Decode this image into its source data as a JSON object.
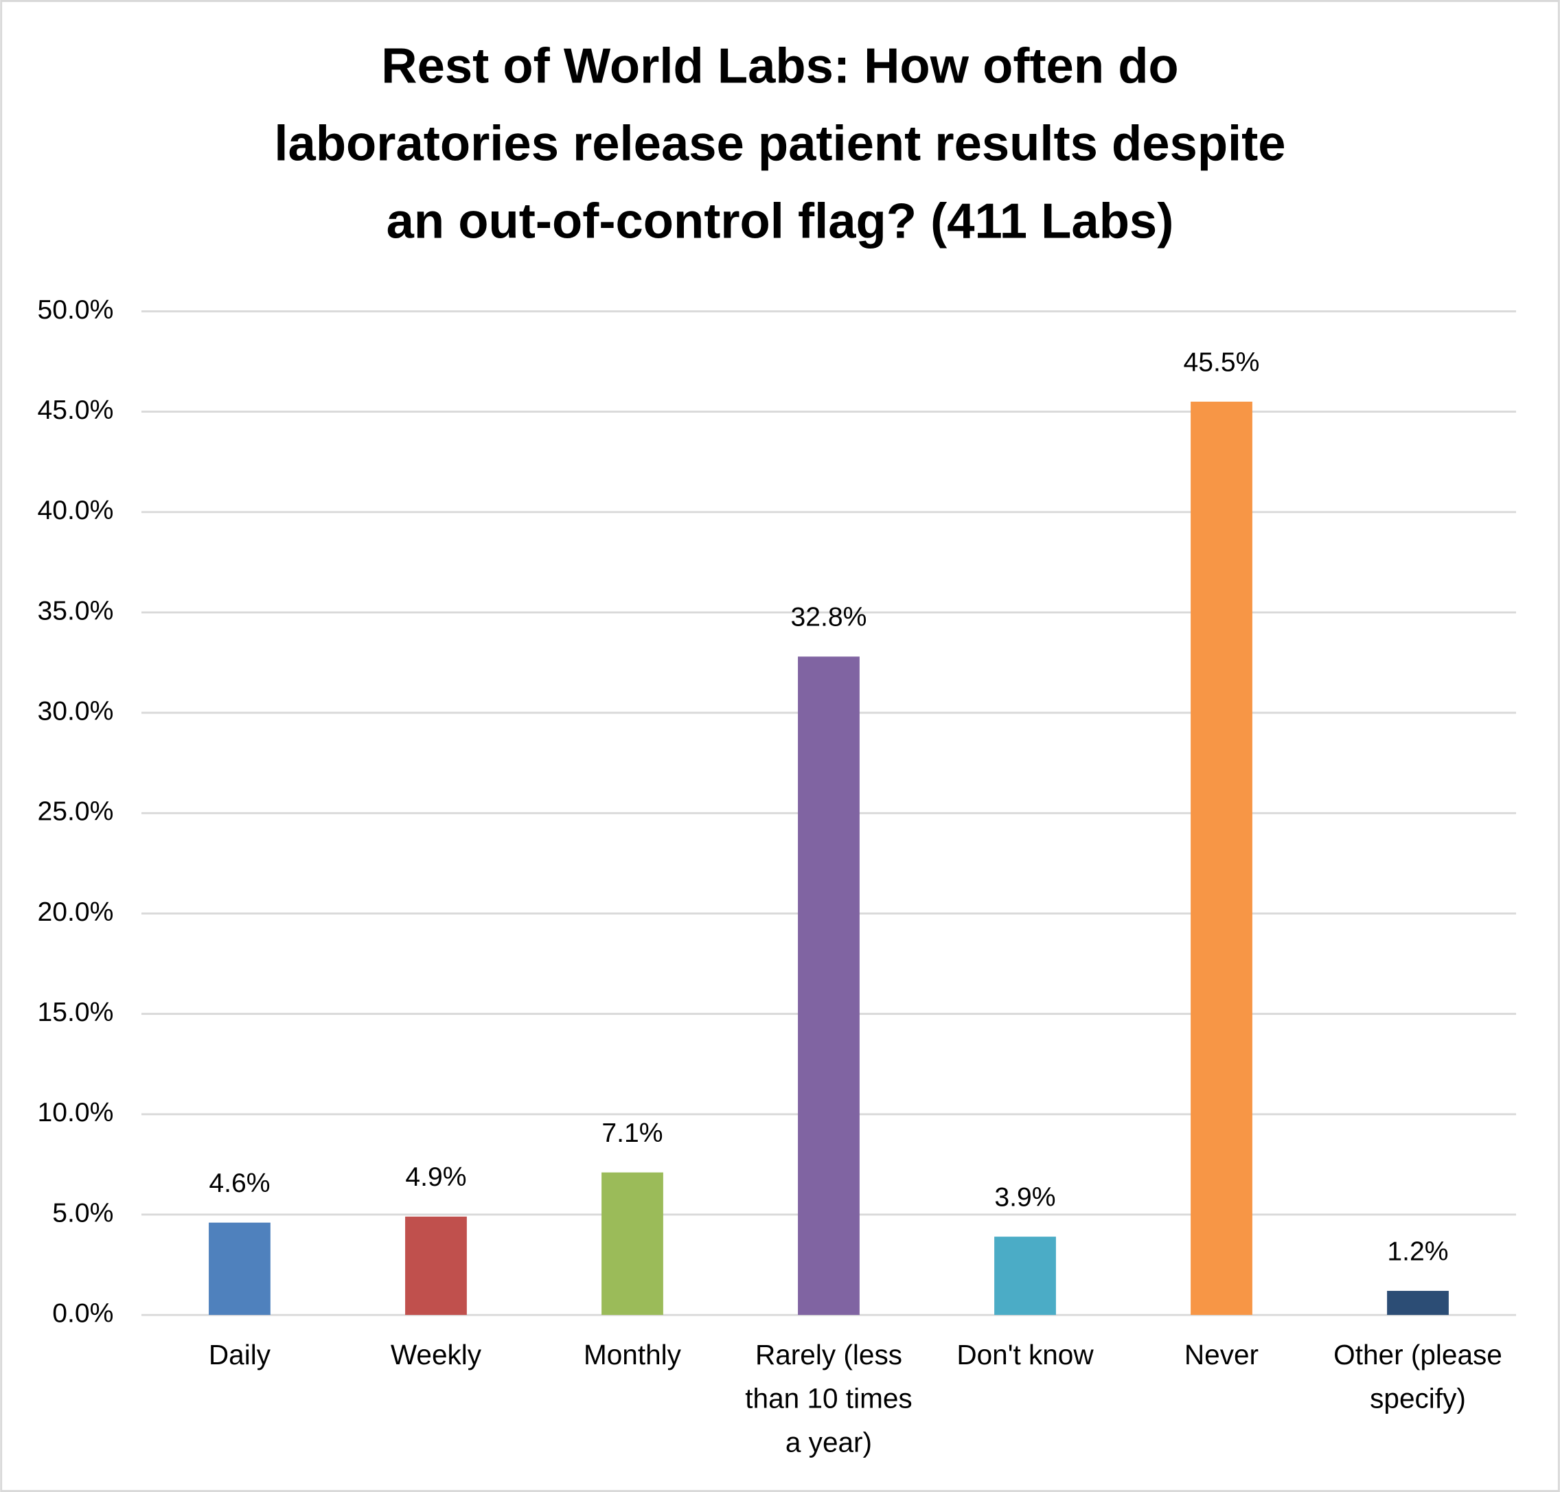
{
  "chart_data": {
    "type": "bar",
    "title": "Rest of World Labs: How often do laboratories release patient results despite an out-of-control flag? (411 Labs)",
    "categories": [
      "Daily",
      "Weekly",
      "Monthly",
      "Rarely (less than 10 times a year)",
      "Don't know",
      "Never",
      "Other (please specify)"
    ],
    "values": [
      4.6,
      4.9,
      7.1,
      32.8,
      3.9,
      45.5,
      1.2
    ],
    "value_labels": [
      "4.6%",
      "4.9%",
      "7.1%",
      "32.8%",
      "3.9%",
      "45.5%",
      "1.2%"
    ],
    "colors": [
      "#4f81bd",
      "#c0504d",
      "#9bbb59",
      "#8064a2",
      "#4bacc6",
      "#f79646",
      "#2c4d75"
    ],
    "ylim": [
      0,
      50
    ],
    "yticks": [
      {
        "value": 0,
        "label": "0.0%"
      },
      {
        "value": 5,
        "label": "5.0%"
      },
      {
        "value": 10,
        "label": "10.0%"
      },
      {
        "value": 15,
        "label": "15.0%"
      },
      {
        "value": 20,
        "label": "20.0%"
      },
      {
        "value": 25,
        "label": "25.0%"
      },
      {
        "value": 30,
        "label": "30.0%"
      },
      {
        "value": 35,
        "label": "35.0%"
      },
      {
        "value": 40,
        "label": "40.0%"
      },
      {
        "value": 45,
        "label": "45.0%"
      },
      {
        "value": 50,
        "label": "50.0%"
      }
    ],
    "grid": true
  }
}
